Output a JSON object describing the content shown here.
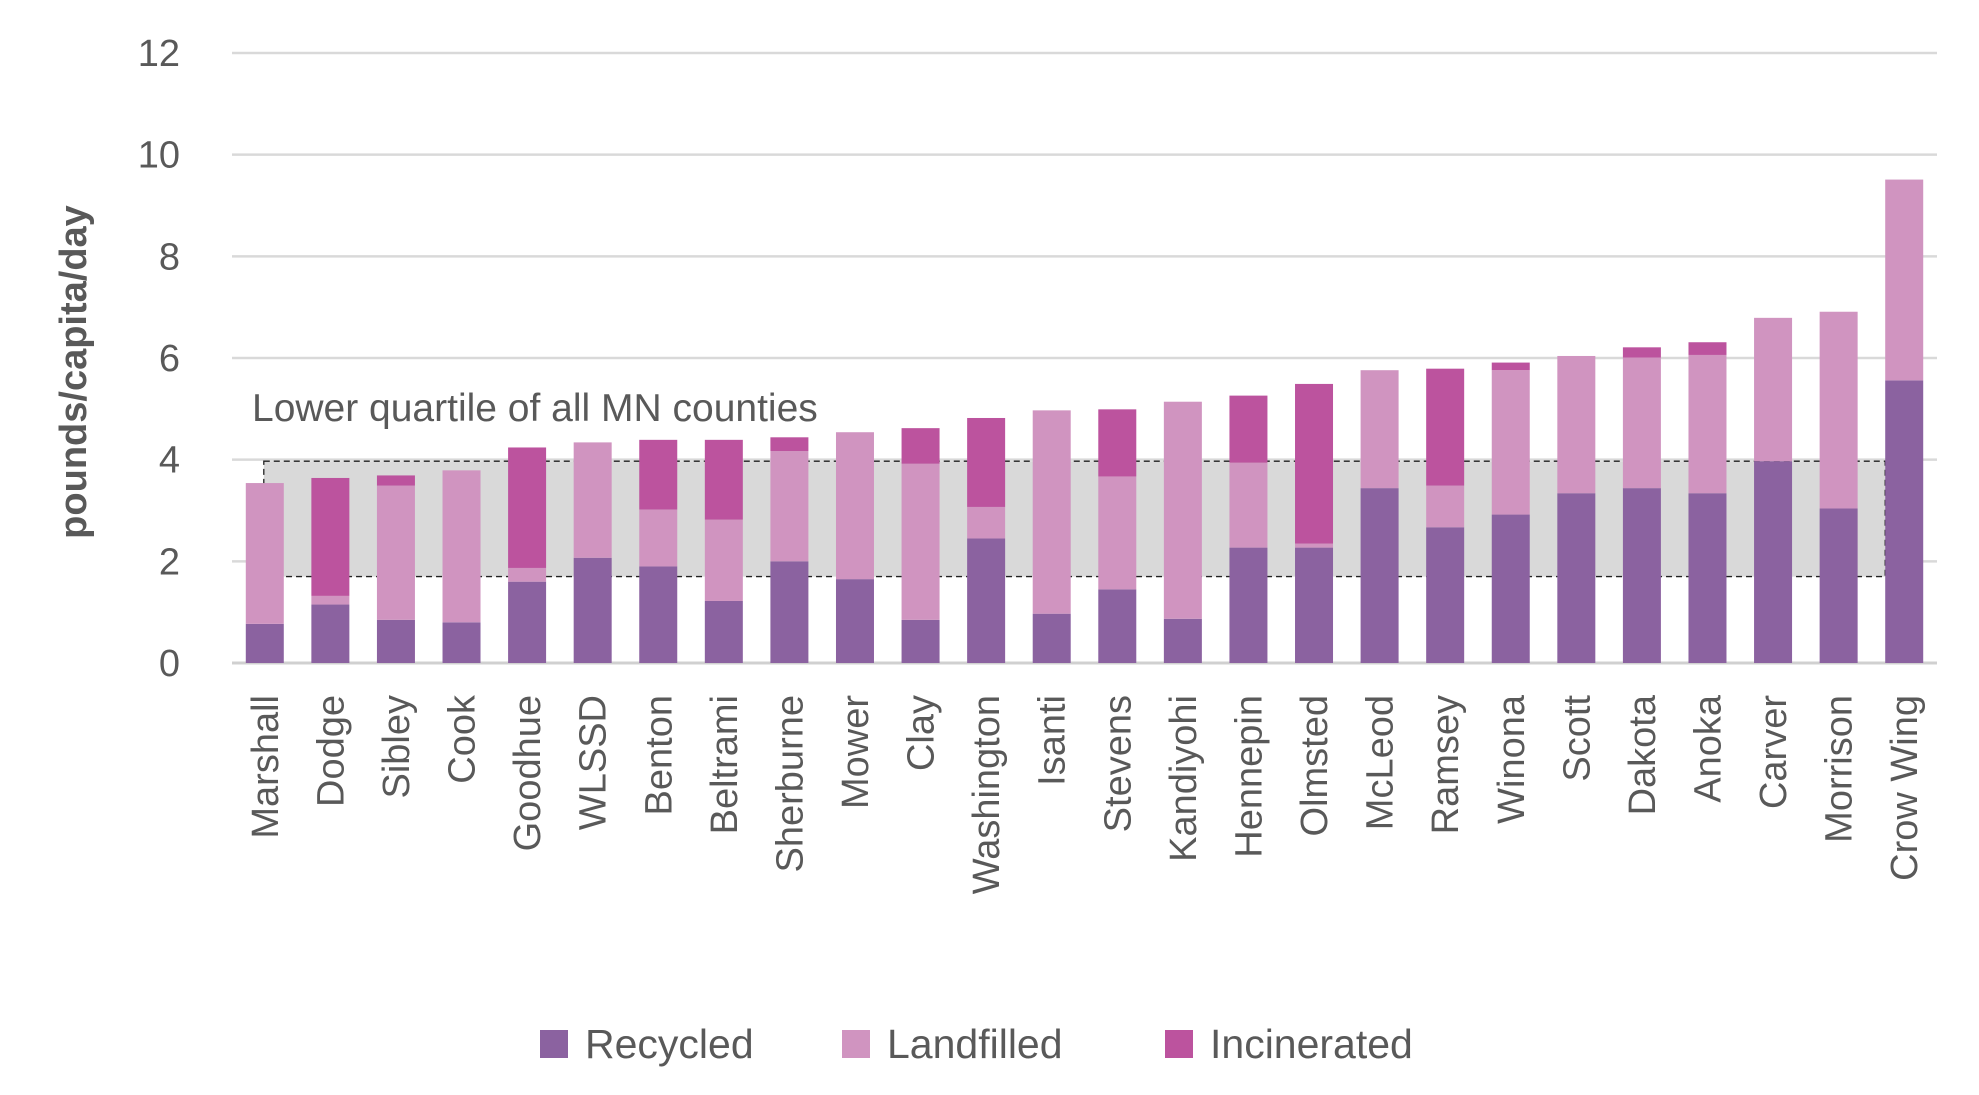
{
  "chart_data": {
    "type": "bar",
    "stacked": true,
    "title": "",
    "xlabel": "",
    "ylabel": "pounds/capita/day",
    "ylim": [
      0,
      12
    ],
    "yticks": [
      0,
      2,
      4,
      6,
      8,
      10,
      12
    ],
    "grid": true,
    "legend_position": "bottom",
    "categories": [
      "Marshall",
      "Dodge",
      "Sibley",
      "Cook",
      "Goodhue",
      "WLSSD",
      "Benton",
      "Beltrami",
      "Sherburne",
      "Mower",
      "Clay",
      "Washington",
      "Isanti",
      "Stevens",
      "Kandiyohi",
      "Hennepin",
      "Olmsted",
      "McLeod",
      "Ramsey",
      "Winona",
      "Scott",
      "Dakota",
      "Anoka",
      "Carver",
      "Morrison",
      "Crow Wing"
    ],
    "series": [
      {
        "name": "Recycled",
        "color": "#8b62a0",
        "values": [
          0.77,
          1.15,
          0.85,
          0.8,
          1.6,
          2.07,
          1.9,
          1.22,
          2.0,
          1.65,
          0.85,
          2.45,
          0.97,
          1.45,
          0.87,
          2.27,
          2.27,
          3.44,
          2.67,
          2.92,
          3.34,
          3.44,
          3.34,
          3.97,
          3.04,
          5.56
        ]
      },
      {
        "name": "Landfilled",
        "color": "#d094c0",
        "values": [
          2.77,
          0.17,
          2.64,
          2.99,
          0.27,
          2.27,
          1.12,
          1.6,
          2.17,
          2.89,
          3.07,
          0.62,
          4.0,
          2.22,
          4.27,
          1.67,
          0.08,
          2.32,
          0.82,
          2.84,
          2.7,
          2.57,
          2.72,
          2.82,
          3.87,
          3.95
        ]
      },
      {
        "name": "Incinerated",
        "color": "#bc539e",
        "values": [
          0,
          2.32,
          0.2,
          0,
          2.37,
          0,
          1.37,
          1.57,
          0.27,
          0,
          0.7,
          1.75,
          0,
          1.32,
          0,
          1.32,
          3.14,
          0,
          2.3,
          0.15,
          0,
          0.2,
          0.25,
          0,
          0,
          0
        ]
      }
    ],
    "annotation": {
      "label": "Lower quartile of all MN counties",
      "range": [
        1.7,
        3.97
      ],
      "color": "#d9d9d9"
    }
  }
}
